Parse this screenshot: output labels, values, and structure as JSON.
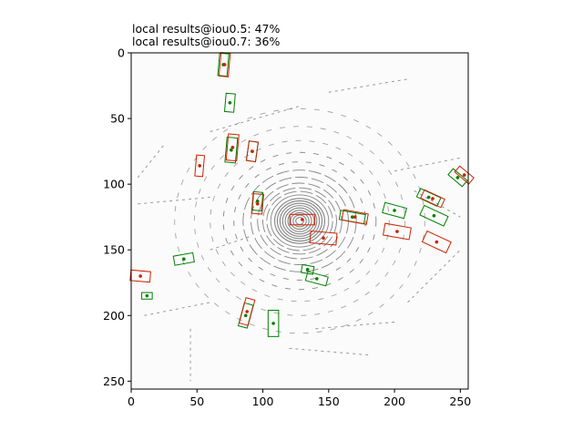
{
  "chart_data": {
    "type": "scatter",
    "title_lines": [
      "local results@iou0.5: 47%",
      "local results@iou0.7: 36%"
    ],
    "xlim": [
      0,
      256
    ],
    "ylim": [
      256,
      0
    ],
    "xticks": [
      "0",
      "50",
      "100",
      "150",
      "200",
      "250"
    ],
    "yticks": [
      "0",
      "50",
      "100",
      "150",
      "200",
      "250"
    ],
    "grid": false,
    "colors": {
      "ground_truth": "#008000",
      "prediction": "#cc2200",
      "points": "#808080",
      "background": "#fbfbfb"
    },
    "ground_truth_boxes": [
      {
        "cx": 70,
        "cy": 9,
        "w": 7,
        "h": 17,
        "angle": 5
      },
      {
        "cx": 75,
        "cy": 38,
        "w": 7,
        "h": 14,
        "angle": 5
      },
      {
        "cx": 76,
        "cy": 74,
        "w": 8,
        "h": 19,
        "angle": 5
      },
      {
        "cx": 92,
        "cy": 75,
        "w": 7,
        "h": 15,
        "angle": 8
      },
      {
        "cx": 96,
        "cy": 113,
        "w": 7,
        "h": 14,
        "angle": 5
      },
      {
        "cx": 168,
        "cy": 125,
        "w": 19,
        "h": 7,
        "angle": 10
      },
      {
        "cx": 200,
        "cy": 120,
        "w": 17,
        "h": 8,
        "angle": 15
      },
      {
        "cx": 230,
        "cy": 124,
        "w": 20,
        "h": 8,
        "angle": 25
      },
      {
        "cx": 226,
        "cy": 110,
        "w": 17,
        "h": 7,
        "angle": 25
      },
      {
        "cx": 248,
        "cy": 95,
        "w": 14,
        "h": 6,
        "angle": 40
      },
      {
        "cx": 40,
        "cy": 157,
        "w": 15,
        "h": 7,
        "angle": -10
      },
      {
        "cx": 134,
        "cy": 165,
        "w": 9,
        "h": 6,
        "angle": 10
      },
      {
        "cx": 141,
        "cy": 172,
        "w": 16,
        "h": 7,
        "angle": 15
      },
      {
        "cx": 12,
        "cy": 185,
        "w": 8,
        "h": 5,
        "angle": 0
      },
      {
        "cx": 87,
        "cy": 200,
        "w": 7,
        "h": 18,
        "angle": 15
      },
      {
        "cx": 108,
        "cy": 206,
        "w": 8,
        "h": 20,
        "angle": 0
      }
    ],
    "predicted_boxes": [
      {
        "cx": 71,
        "cy": 9,
        "w": 7,
        "h": 18,
        "angle": 5
      },
      {
        "cx": 52,
        "cy": 86,
        "w": 6,
        "h": 16,
        "angle": 5
      },
      {
        "cx": 77,
        "cy": 72,
        "w": 8,
        "h": 20,
        "angle": 5
      },
      {
        "cx": 92,
        "cy": 75,
        "w": 7,
        "h": 15,
        "angle": 8
      },
      {
        "cx": 96,
        "cy": 115,
        "w": 8,
        "h": 15,
        "angle": 5
      },
      {
        "cx": 130,
        "cy": 127,
        "w": 19,
        "h": 8,
        "angle": 0
      },
      {
        "cx": 146,
        "cy": 141,
        "w": 20,
        "h": 9,
        "angle": 5
      },
      {
        "cx": 170,
        "cy": 125,
        "w": 19,
        "h": 8,
        "angle": 10
      },
      {
        "cx": 202,
        "cy": 136,
        "w": 20,
        "h": 9,
        "angle": 10
      },
      {
        "cx": 229,
        "cy": 111,
        "w": 17,
        "h": 7,
        "angle": 25
      },
      {
        "cx": 232,
        "cy": 144,
        "w": 20,
        "h": 9,
        "angle": 25
      },
      {
        "cx": 253,
        "cy": 93,
        "w": 14,
        "h": 6,
        "angle": 40
      },
      {
        "cx": 7,
        "cy": 170,
        "w": 15,
        "h": 8,
        "angle": 5
      },
      {
        "cx": 88,
        "cy": 197,
        "w": 7,
        "h": 20,
        "angle": 15
      }
    ]
  }
}
